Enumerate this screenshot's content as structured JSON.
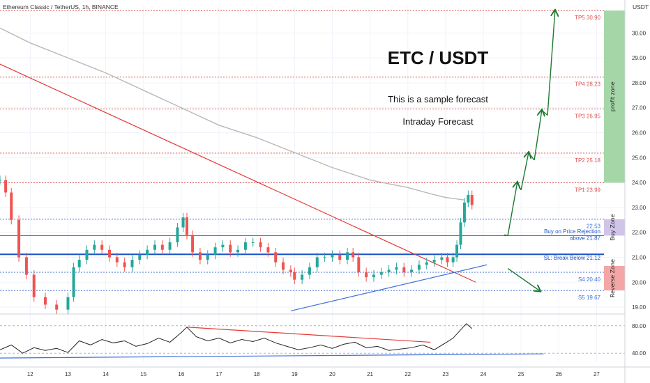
{
  "header": {
    "symbol_label": "Ethereum Classic / TetherUS, 1h, BINANCE",
    "currency": "USDT"
  },
  "chart_data": [
    {
      "type": "line",
      "title": "ETC / USDT",
      "subtitle_1": "This is a sample forecast",
      "subtitle_2": "Intraday Forecast",
      "y_axis": {
        "min": 18.75,
        "max": 31.1,
        "ticks": [
          "19.00",
          "20.00",
          "21.00",
          "22.00",
          "23.00",
          "24.00",
          "25.00",
          "26.00",
          "27.00",
          "28.00",
          "29.00",
          "30.00"
        ]
      },
      "x_axis": {
        "min": 11.2,
        "max": 27.75,
        "ticks": [
          "12",
          "13",
          "14",
          "15",
          "16",
          "17",
          "18",
          "19",
          "20",
          "21",
          "22",
          "23",
          "24",
          "25",
          "26",
          "27"
        ]
      },
      "price_series": {
        "name": "ETCUSDT 1h",
        "color": "#26a69a",
        "x": [
          11.2,
          11.35,
          11.5,
          11.7,
          11.9,
          12.1,
          12.4,
          12.7,
          13.0,
          13.15,
          13.3,
          13.5,
          13.7,
          13.9,
          14.1,
          14.3,
          14.5,
          14.7,
          14.9,
          15.1,
          15.3,
          15.5,
          15.7,
          15.9,
          16.05,
          16.15,
          16.3,
          16.5,
          16.7,
          16.9,
          17.1,
          17.3,
          17.5,
          17.7,
          17.9,
          18.1,
          18.3,
          18.5,
          18.7,
          18.9,
          19.0,
          19.2,
          19.4,
          19.6,
          19.8,
          20.0,
          20.2,
          20.4,
          20.55,
          20.7,
          20.9,
          21.1,
          21.3,
          21.5,
          21.7,
          21.9,
          22.1,
          22.3,
          22.5,
          22.7,
          22.9,
          23.05,
          23.2,
          23.3,
          23.4,
          23.5,
          23.6,
          23.7
        ],
        "y": [
          24.1,
          23.6,
          22.5,
          21.0,
          20.3,
          19.4,
          19.1,
          18.9,
          19.4,
          20.6,
          20.9,
          21.3,
          21.5,
          21.3,
          21.0,
          20.8,
          20.6,
          20.9,
          21.1,
          21.3,
          21.5,
          21.3,
          21.6,
          22.2,
          22.6,
          21.9,
          21.2,
          20.9,
          21.1,
          21.4,
          21.5,
          21.2,
          21.3,
          21.6,
          21.6,
          21.4,
          21.2,
          20.8,
          20.5,
          20.4,
          20.1,
          20.3,
          20.6,
          21.0,
          21.0,
          21.1,
          20.9,
          21.2,
          21.0,
          20.4,
          20.2,
          20.3,
          20.4,
          20.5,
          20.6,
          20.4,
          20.5,
          20.7,
          20.8,
          20.9,
          21.0,
          20.8,
          21.0,
          21.5,
          22.4,
          23.2,
          23.5,
          23.1
        ]
      },
      "ma_series": {
        "name": "moving average",
        "color": "#b8b8b8",
        "x": [
          11.2,
          12.0,
          13.0,
          14.0,
          15.0,
          16.0,
          17.0,
          18.0,
          19.0,
          20.0,
          21.0,
          22.0,
          22.6,
          23.0,
          23.5
        ],
        "y": [
          30.2,
          29.6,
          29.0,
          28.4,
          27.7,
          27.0,
          26.3,
          25.8,
          25.2,
          24.6,
          24.1,
          23.8,
          23.55,
          23.4,
          23.3
        ]
      },
      "trendlines": [
        {
          "name": "downtrend",
          "color": "#e53935",
          "x": [
            11.2,
            23.8
          ],
          "y": [
            28.75,
            20.0
          ]
        },
        {
          "name": "uptrend",
          "color": "#3f6fd8",
          "x": [
            18.9,
            24.1
          ],
          "y": [
            18.85,
            20.7
          ]
        }
      ],
      "levels": [
        {
          "label": "TP5 30.90",
          "value": 30.9,
          "color": "#e05252",
          "style": "dotted"
        },
        {
          "label": "TP4 28.23",
          "value": 28.23,
          "color": "#e05252",
          "style": "dotted"
        },
        {
          "label": "TP3 26.95",
          "value": 26.95,
          "color": "#e05252",
          "style": "dotted"
        },
        {
          "label": "TP2 25.18",
          "value": 25.18,
          "color": "#e05252",
          "style": "dotted"
        },
        {
          "label": "TP1 23.99",
          "value": 23.99,
          "color": "#e05252",
          "style": "dotted"
        },
        {
          "label": "22.53",
          "value": 22.53,
          "color": "#3f6fd8",
          "style": "dotted"
        },
        {
          "label": "",
          "value": 21.87,
          "color": "#1f56c9",
          "style": "solid"
        },
        {
          "label": "",
          "value": 21.12,
          "color": "#1f56c9",
          "style": "solid-thick"
        },
        {
          "label": "S4 20.40",
          "value": 20.4,
          "color": "#3f6fd8",
          "style": "dotted"
        },
        {
          "label": "S5 19.67",
          "value": 19.67,
          "color": "#3f6fd8",
          "style": "dotted"
        }
      ],
      "level_notes": [
        {
          "text": "Buy on Price Rejection",
          "value": 22.05
        },
        {
          "text": "above 21.87",
          "value": 21.78
        },
        {
          "text": "SL: Break Below 21.12",
          "value": 20.98
        }
      ],
      "zones": [
        {
          "label": "profit zone",
          "from": 23.99,
          "to": 30.9,
          "color": "#a5d6a7"
        },
        {
          "label": "Buy Zone",
          "from": 21.87,
          "to": 22.53,
          "color": "#d1c4e9"
        },
        {
          "label": "Reverse Zone",
          "from": 19.67,
          "to": 20.65,
          "color": "#f4a6a6"
        }
      ],
      "forecast_arrows": {
        "color": "#1b7a2f",
        "x": [
          24.55,
          24.65,
          24.9,
          25.0,
          25.2,
          25.35,
          25.55,
          25.7,
          25.9
        ],
        "y": [
          21.9,
          21.88,
          24.0,
          23.7,
          25.2,
          24.9,
          26.9,
          26.7,
          30.9
        ]
      },
      "reverse_arrow": {
        "color": "#1b7a2f",
        "x": [
          24.65,
          25.5
        ],
        "y": [
          20.55,
          19.65
        ]
      },
      "price_now": 23.3
    },
    {
      "type": "line",
      "title": "",
      "y_axis": {
        "min": 27,
        "max": 93,
        "ticks": [
          "40.00",
          "80.00"
        ]
      },
      "rsi_series": {
        "name": "RSI",
        "color": "#222222",
        "x": [
          11.2,
          11.5,
          11.8,
          12.1,
          12.4,
          12.7,
          13.0,
          13.3,
          13.6,
          13.9,
          14.2,
          14.5,
          14.8,
          15.1,
          15.4,
          15.7,
          16.0,
          16.15,
          16.4,
          16.7,
          17.0,
          17.3,
          17.6,
          17.9,
          18.2,
          18.5,
          18.8,
          19.1,
          19.4,
          19.7,
          20.0,
          20.3,
          20.6,
          20.9,
          21.2,
          21.5,
          21.8,
          22.1,
          22.4,
          22.7,
          23.0,
          23.2,
          23.4,
          23.55,
          23.7
        ],
        "y": [
          45,
          52,
          40,
          48,
          44,
          47,
          41,
          58,
          52,
          60,
          55,
          58,
          50,
          54,
          62,
          56,
          70,
          78,
          64,
          58,
          62,
          55,
          60,
          57,
          62,
          55,
          50,
          45,
          48,
          52,
          47,
          53,
          56,
          48,
          50,
          44,
          46,
          48,
          52,
          45,
          55,
          62,
          74,
          83,
          76
        ]
      },
      "rsi_trendlines": [
        {
          "name": "rsi-divergence",
          "color": "#e53935",
          "x": [
            16.15,
            22.6
          ],
          "y": [
            78,
            56
          ]
        },
        {
          "name": "rsi-support",
          "color": "#3f6fd8",
          "x": [
            11.2,
            25.6
          ],
          "y": [
            33,
            39
          ]
        }
      ],
      "reference_lines": [
        40,
        80
      ]
    }
  ]
}
